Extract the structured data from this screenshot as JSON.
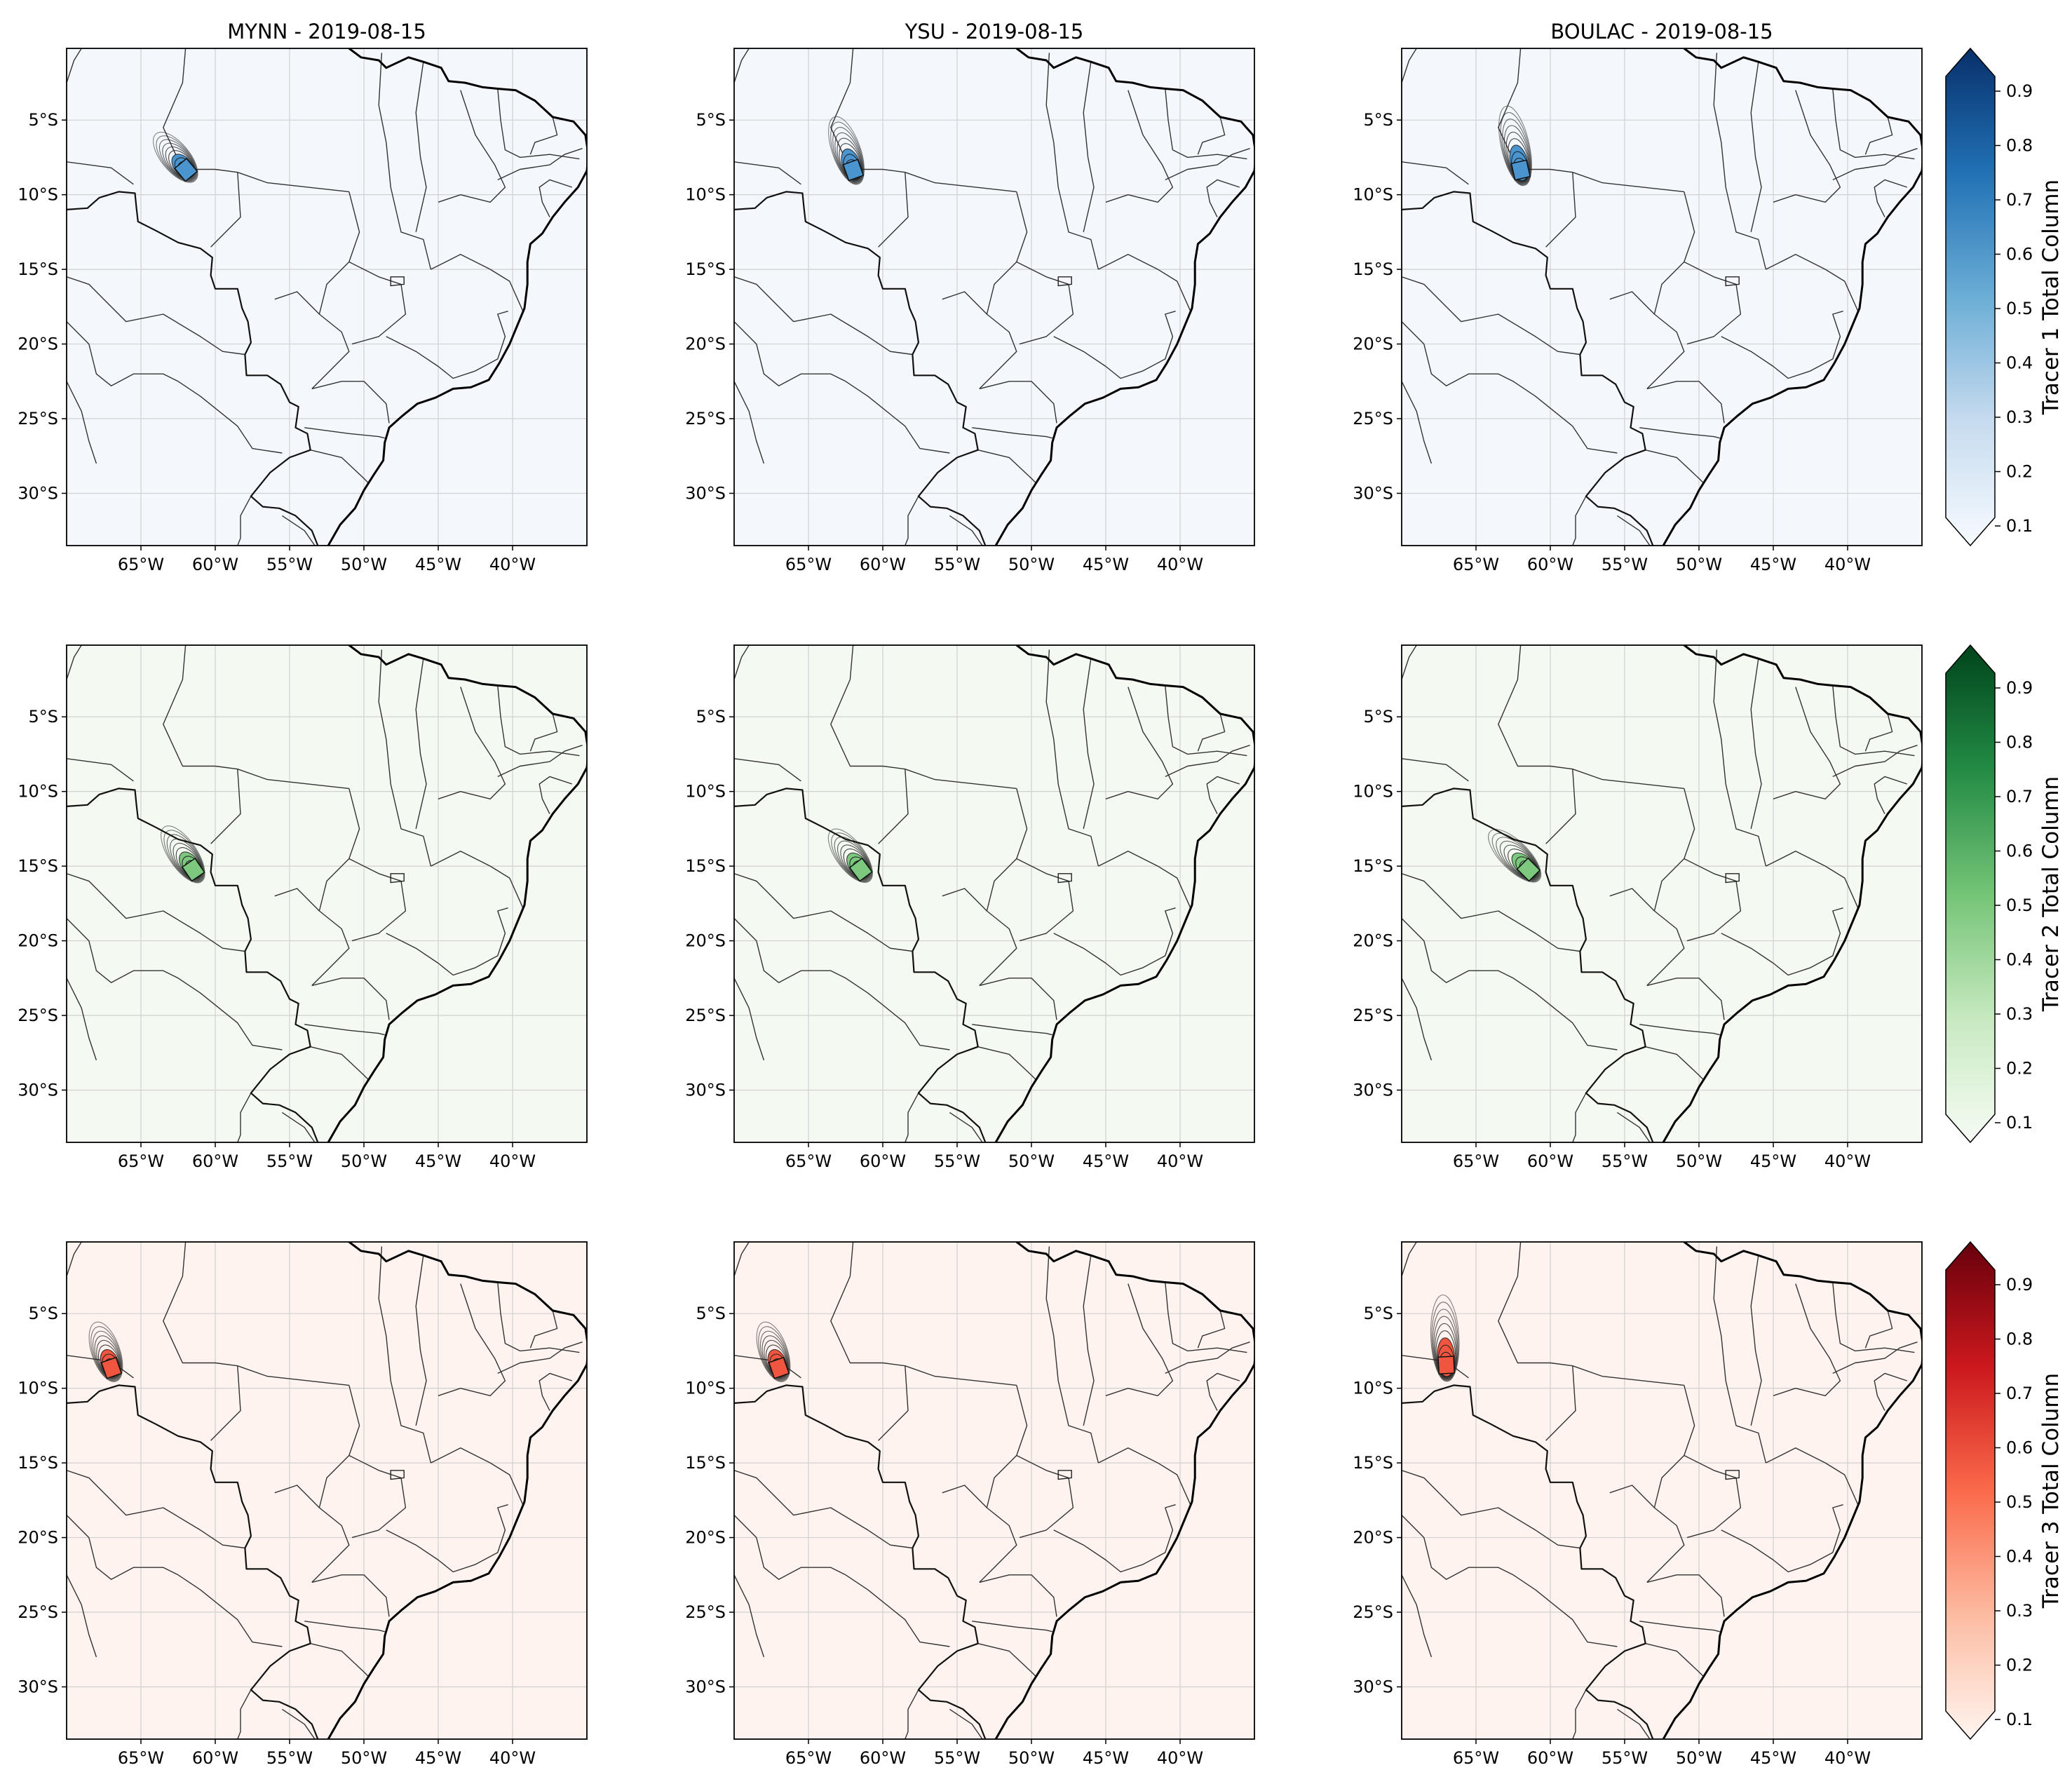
{
  "figure": {
    "panels": [
      {
        "title": "MYNN - 2019-08-15",
        "row": 0,
        "col": 0,
        "cmap": 0,
        "plume": {
          "lon": -62.0,
          "lat": -8.3,
          "tail_lon": -63.5,
          "tail_lat": -6.5
        }
      },
      {
        "title": "YSU - 2019-08-15",
        "row": 0,
        "col": 1,
        "cmap": 0,
        "plume": {
          "lon": -62.0,
          "lat": -8.3,
          "tail_lon": -63.0,
          "tail_lat": -5.5
        }
      },
      {
        "title": "BOULAC - 2019-08-15",
        "row": 0,
        "col": 2,
        "cmap": 0,
        "plume": {
          "lon": -62.0,
          "lat": -8.3,
          "tail_lon": -62.8,
          "tail_lat": -4.8
        }
      },
      {
        "title": "",
        "row": 1,
        "col": 0,
        "cmap": 1,
        "plume": {
          "lon": -61.5,
          "lat": -15.2,
          "tail_lon": -63.0,
          "tail_lat": -13.0
        }
      },
      {
        "title": "",
        "row": 1,
        "col": 1,
        "cmap": 1,
        "plume": {
          "lon": -61.5,
          "lat": -15.2,
          "tail_lon": -63.0,
          "tail_lat": -13.2
        }
      },
      {
        "title": "",
        "row": 1,
        "col": 2,
        "cmap": 1,
        "plume": {
          "lon": -61.5,
          "lat": -15.2,
          "tail_lon": -63.5,
          "tail_lat": -13.2
        }
      },
      {
        "title": "",
        "row": 2,
        "col": 0,
        "cmap": 2,
        "plume": {
          "lon": -67.0,
          "lat": -8.6,
          "tail_lon": -67.8,
          "tail_lat": -6.3
        }
      },
      {
        "title": "",
        "row": 2,
        "col": 1,
        "cmap": 2,
        "plume": {
          "lon": -67.0,
          "lat": -8.6,
          "tail_lon": -67.8,
          "tail_lat": -6.3
        }
      },
      {
        "title": "",
        "row": 2,
        "col": 2,
        "cmap": 2,
        "plume": {
          "lon": -67.0,
          "lat": -8.4,
          "tail_lon": -67.2,
          "tail_lat": -4.5
        }
      }
    ],
    "colorbars": [
      {
        "label": "Tracer 1 Total Column",
        "colors": [
          "#f7fbff",
          "#c6dbef",
          "#6baed6",
          "#2171b5",
          "#08306b"
        ],
        "plume_fill": "#4a94cf",
        "background": "#f4f8fd"
      },
      {
        "label": "Tracer 2 Total Column",
        "colors": [
          "#f7fcf5",
          "#c7e9c0",
          "#74c476",
          "#238b45",
          "#00441b"
        ],
        "plume_fill": "#7cc87f",
        "background": "#f4faf1"
      },
      {
        "label": "Tracer 3 Total Column",
        "colors": [
          "#fff5f0",
          "#fcbba1",
          "#fb6a4a",
          "#cb181d",
          "#67000d"
        ],
        "plume_fill": "#f0553f",
        "background": "#fef3ee"
      }
    ],
    "colorbar_ticks": [
      "0.1",
      "0.2",
      "0.3",
      "0.4",
      "0.5",
      "0.6",
      "0.7",
      "0.8",
      "0.9"
    ],
    "lon_ticks": [
      "65°W",
      "60°W",
      "55°W",
      "50°W",
      "45°W",
      "40°W"
    ],
    "lat_ticks": [
      "5°S",
      "10°S",
      "15°S",
      "20°S",
      "25°S",
      "30°S"
    ],
    "extent": {
      "lon_min": -70,
      "lon_max": -35,
      "lat_min": -33.5,
      "lat_max": -0.2
    }
  }
}
